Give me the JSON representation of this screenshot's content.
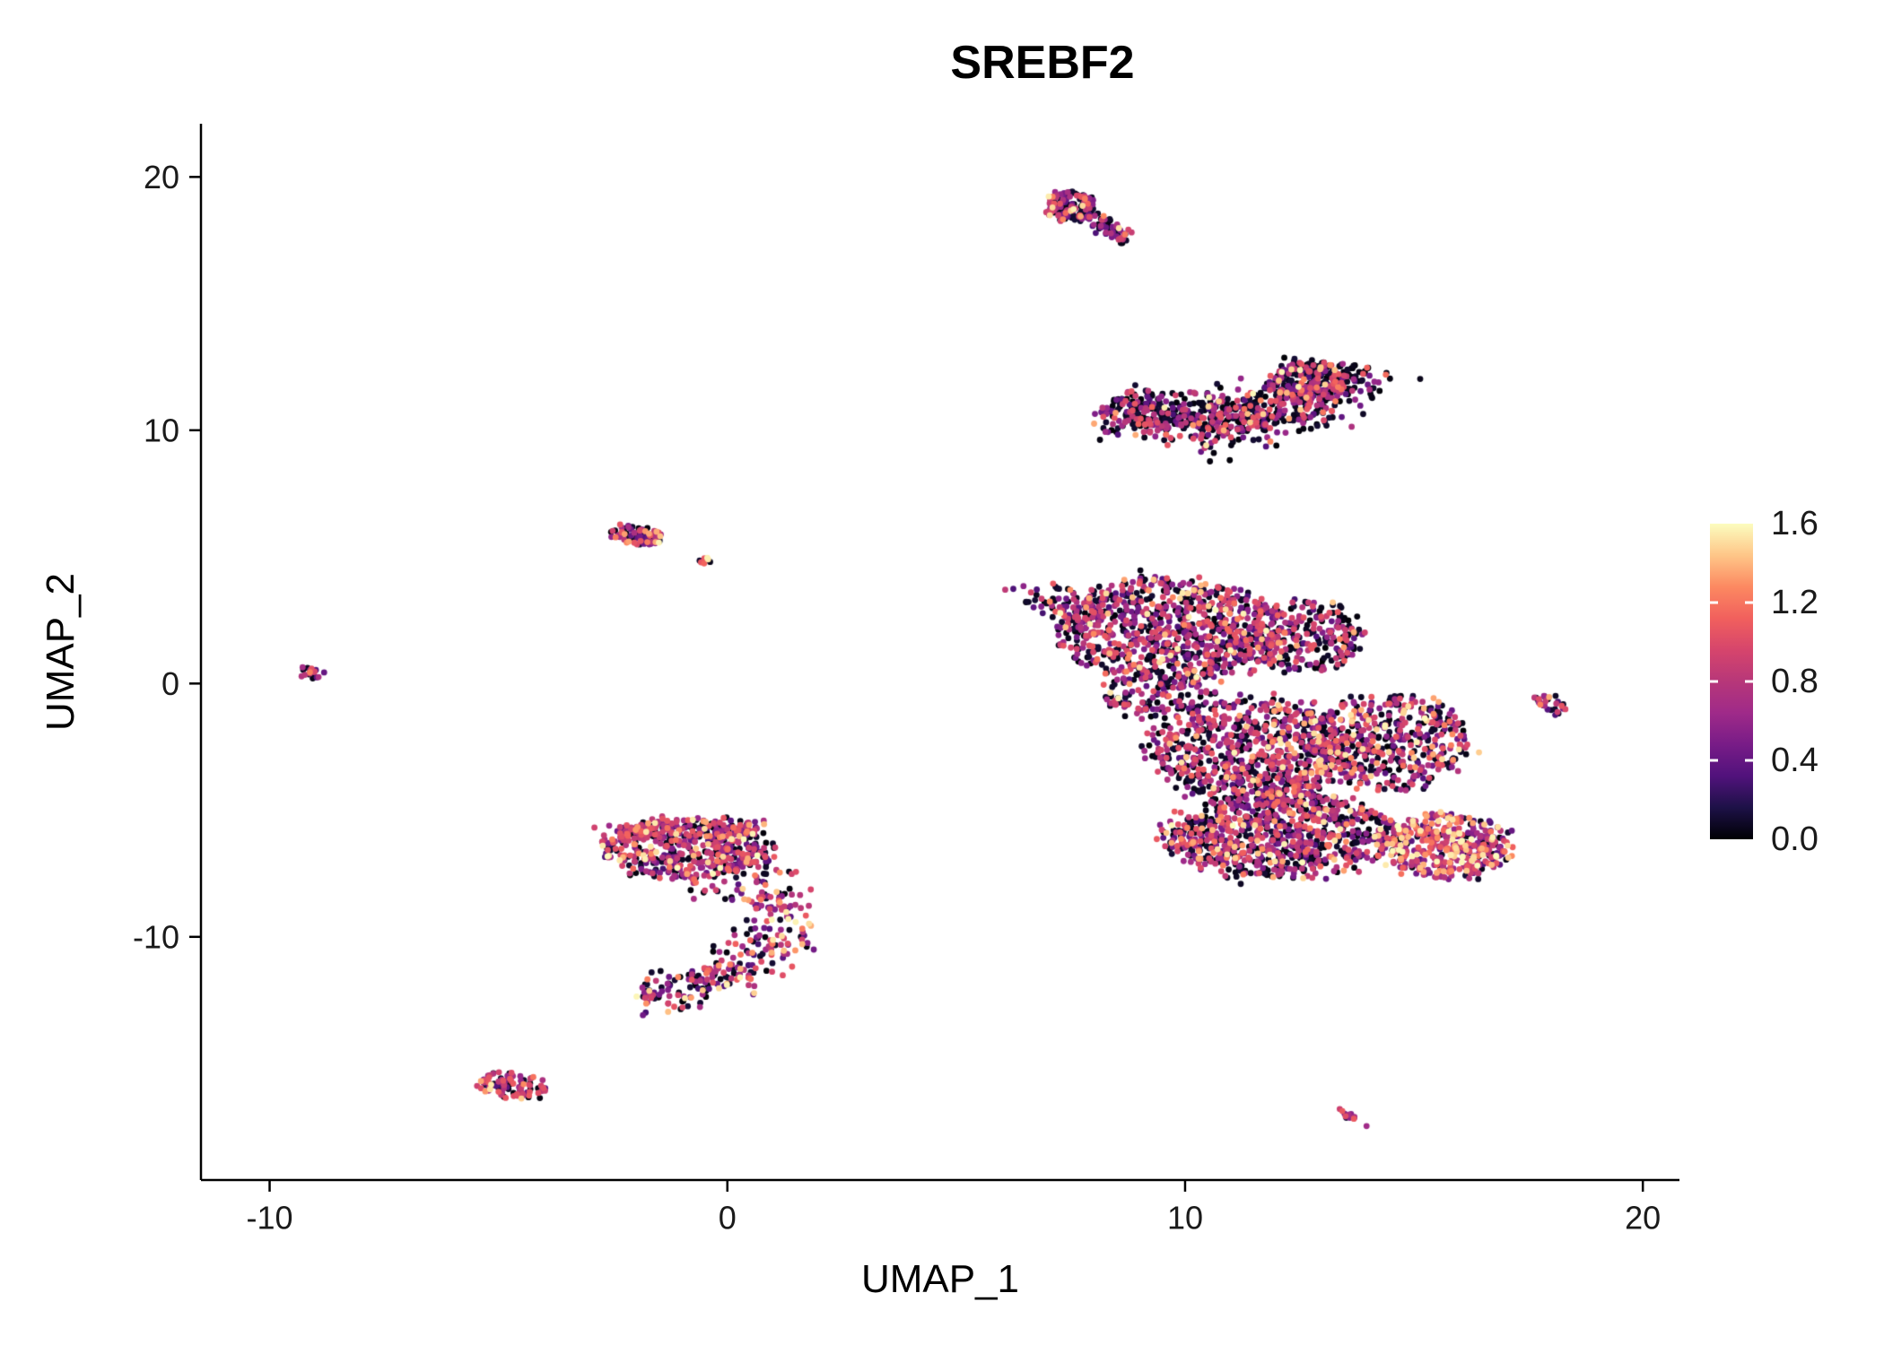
{
  "chart_data": {
    "type": "scatter",
    "title": "SREBF2",
    "xlabel": "UMAP_1",
    "ylabel": "UMAP_2",
    "xlim": [
      -11.5,
      20.8
    ],
    "ylim": [
      -19.6,
      22.1
    ],
    "xticks": [
      -10,
      0,
      10,
      20
    ],
    "yticks": [
      -10,
      0,
      10,
      20
    ],
    "grid": false,
    "point_radius_px": 3.4,
    "legend": {
      "position": "right",
      "type": "colorbar",
      "min": 0.0,
      "max": 1.6,
      "tick_values": [
        1.6,
        1.2,
        0.8,
        0.4,
        0.0
      ],
      "ticks": [
        "1.6",
        "1.2",
        "0.8",
        "0.4",
        "0.0"
      ]
    },
    "colormap": {
      "name": "magma",
      "stops": [
        "#000004",
        "#1d1147",
        "#51127c",
        "#781c87",
        "#9f2a89",
        "#b73779",
        "#d6456c",
        "#f1605d",
        "#fc8961",
        "#fec688",
        "#fcfdbf"
      ]
    },
    "clusters": [
      {
        "name": "comet-head",
        "shape": "ellipse",
        "cx": 7.45,
        "cy": 18.85,
        "rx": 0.55,
        "ry": 0.6,
        "rot": -30,
        "n": 130,
        "dark": 0.4,
        "hi": 0.08
      },
      {
        "name": "comet-tail",
        "shape": "strip",
        "x1": 7.8,
        "y1": 18.4,
        "x2": 8.75,
        "y2": 17.55,
        "w": 0.16,
        "n": 60,
        "dark": 0.45,
        "hi": 0.05
      },
      {
        "name": "crescent",
        "shape": "arc",
        "cx": 10.4,
        "cy": 13.4,
        "rx": 3.3,
        "ry": 3.1,
        "a0": 230,
        "a1": 345,
        "w": 0.5,
        "n": 780,
        "dark": 0.58,
        "hi": 0.04
      },
      {
        "name": "crescent-right-bulge",
        "shape": "ellipse",
        "cx": 12.65,
        "cy": 11.9,
        "rx": 0.8,
        "ry": 0.9,
        "rot": 0,
        "n": 170,
        "dark": 0.5,
        "hi": 0.06
      },
      {
        "name": "small-upper-left",
        "shape": "ellipse",
        "cx": -1.95,
        "cy": 5.85,
        "rx": 0.62,
        "ry": 0.34,
        "rot": -12,
        "n": 80,
        "dark": 0.22,
        "hi": 0.15
      },
      {
        "name": "small-upper-left-satellite",
        "shape": "ellipse",
        "cx": -0.45,
        "cy": 4.85,
        "rx": 0.2,
        "ry": 0.13,
        "rot": 0,
        "n": 9,
        "dark": 0.2,
        "hi": 0.2
      },
      {
        "name": "far-left-dot",
        "shape": "ellipse",
        "cx": -9.15,
        "cy": 0.4,
        "rx": 0.33,
        "ry": 0.27,
        "rot": 10,
        "n": 18,
        "dark": 0.25,
        "hi": 0.12
      },
      {
        "name": "main-upper-lobe",
        "shape": "ellipse",
        "cx": 9.7,
        "cy": 2.1,
        "rx": 2.5,
        "ry": 2.05,
        "rot": -5,
        "n": 850,
        "dark": 0.38,
        "hi": 0.07
      },
      {
        "name": "main-upper-tip",
        "shape": "strip",
        "x1": 6.7,
        "y1": 3.6,
        "x2": 8.0,
        "y2": 2.6,
        "w": 0.32,
        "n": 70,
        "dark": 0.35,
        "hi": 0.1
      },
      {
        "name": "main-upper-right",
        "shape": "ellipse",
        "cx": 12.6,
        "cy": 1.9,
        "rx": 1.3,
        "ry": 1.4,
        "rot": 0,
        "n": 260,
        "dark": 0.45,
        "hi": 0.06
      },
      {
        "name": "main-bridge",
        "shape": "ellipse",
        "cx": 9.4,
        "cy": -0.4,
        "rx": 1.2,
        "ry": 1.0,
        "rot": 0,
        "n": 140,
        "dark": 0.4,
        "hi": 0.07
      },
      {
        "name": "main-middle",
        "shape": "ellipse",
        "cx": 11.5,
        "cy": -2.7,
        "rx": 2.2,
        "ry": 2.1,
        "rot": 0,
        "n": 800,
        "dark": 0.38,
        "hi": 0.08
      },
      {
        "name": "main-right-lobe",
        "shape": "ellipse",
        "cx": 14.5,
        "cy": -2.3,
        "rx": 1.8,
        "ry": 1.9,
        "rot": 0,
        "n": 450,
        "dark": 0.38,
        "hi": 0.1
      },
      {
        "name": "main-bottom",
        "shape": "ellipse",
        "cx": 12.1,
        "cy": -6.0,
        "rx": 2.5,
        "ry": 1.7,
        "rot": 4,
        "n": 820,
        "dark": 0.35,
        "hi": 0.1
      },
      {
        "name": "main-bottom-right",
        "shape": "ellipse",
        "cx": 15.7,
        "cy": -6.4,
        "rx": 1.45,
        "ry": 1.25,
        "rot": -10,
        "n": 430,
        "dark": 0.12,
        "hi": 0.3
      },
      {
        "name": "right-small",
        "shape": "ellipse",
        "cx": 18.0,
        "cy": -0.8,
        "rx": 0.35,
        "ry": 0.5,
        "rot": 20,
        "n": 30,
        "dark": 0.35,
        "hi": 0.08
      },
      {
        "name": "center-left-main",
        "shape": "ellipse",
        "cx": -0.9,
        "cy": -6.5,
        "rx": 1.85,
        "ry": 1.2,
        "rot": 0,
        "n": 440,
        "dark": 0.3,
        "hi": 0.12
      },
      {
        "name": "center-left-topband",
        "shape": "strip",
        "x1": -2.4,
        "y1": -5.85,
        "x2": 0.7,
        "y2": -5.7,
        "w": 0.22,
        "n": 130,
        "dark": 0.25,
        "hi": 0.15
      },
      {
        "name": "center-left-sparse",
        "shape": "ellipse",
        "cx": 0.1,
        "cy": -7.6,
        "rx": 1.3,
        "ry": 1.1,
        "rot": 0,
        "n": 70,
        "dark": 0.45,
        "hi": 0.08
      },
      {
        "name": "center-left-hook",
        "shape": "arc",
        "cx": -1.3,
        "cy": -8.8,
        "rx": 2.4,
        "ry": 3.4,
        "a0": 10,
        "a1": -105,
        "w": 0.4,
        "n": 250,
        "dark": 0.28,
        "hi": 0.14
      },
      {
        "name": "bottom-left",
        "shape": "ellipse",
        "cx": -4.65,
        "cy": -15.9,
        "rx": 0.85,
        "ry": 0.5,
        "rot": -12,
        "n": 95,
        "dark": 0.3,
        "hi": 0.12
      },
      {
        "name": "bottom-right-tiny",
        "shape": "strip",
        "x1": 13.4,
        "y1": -16.9,
        "x2": 13.8,
        "y2": -17.3,
        "w": 0.1,
        "n": 14,
        "dark": 0.2,
        "hi": 0.12
      }
    ]
  }
}
